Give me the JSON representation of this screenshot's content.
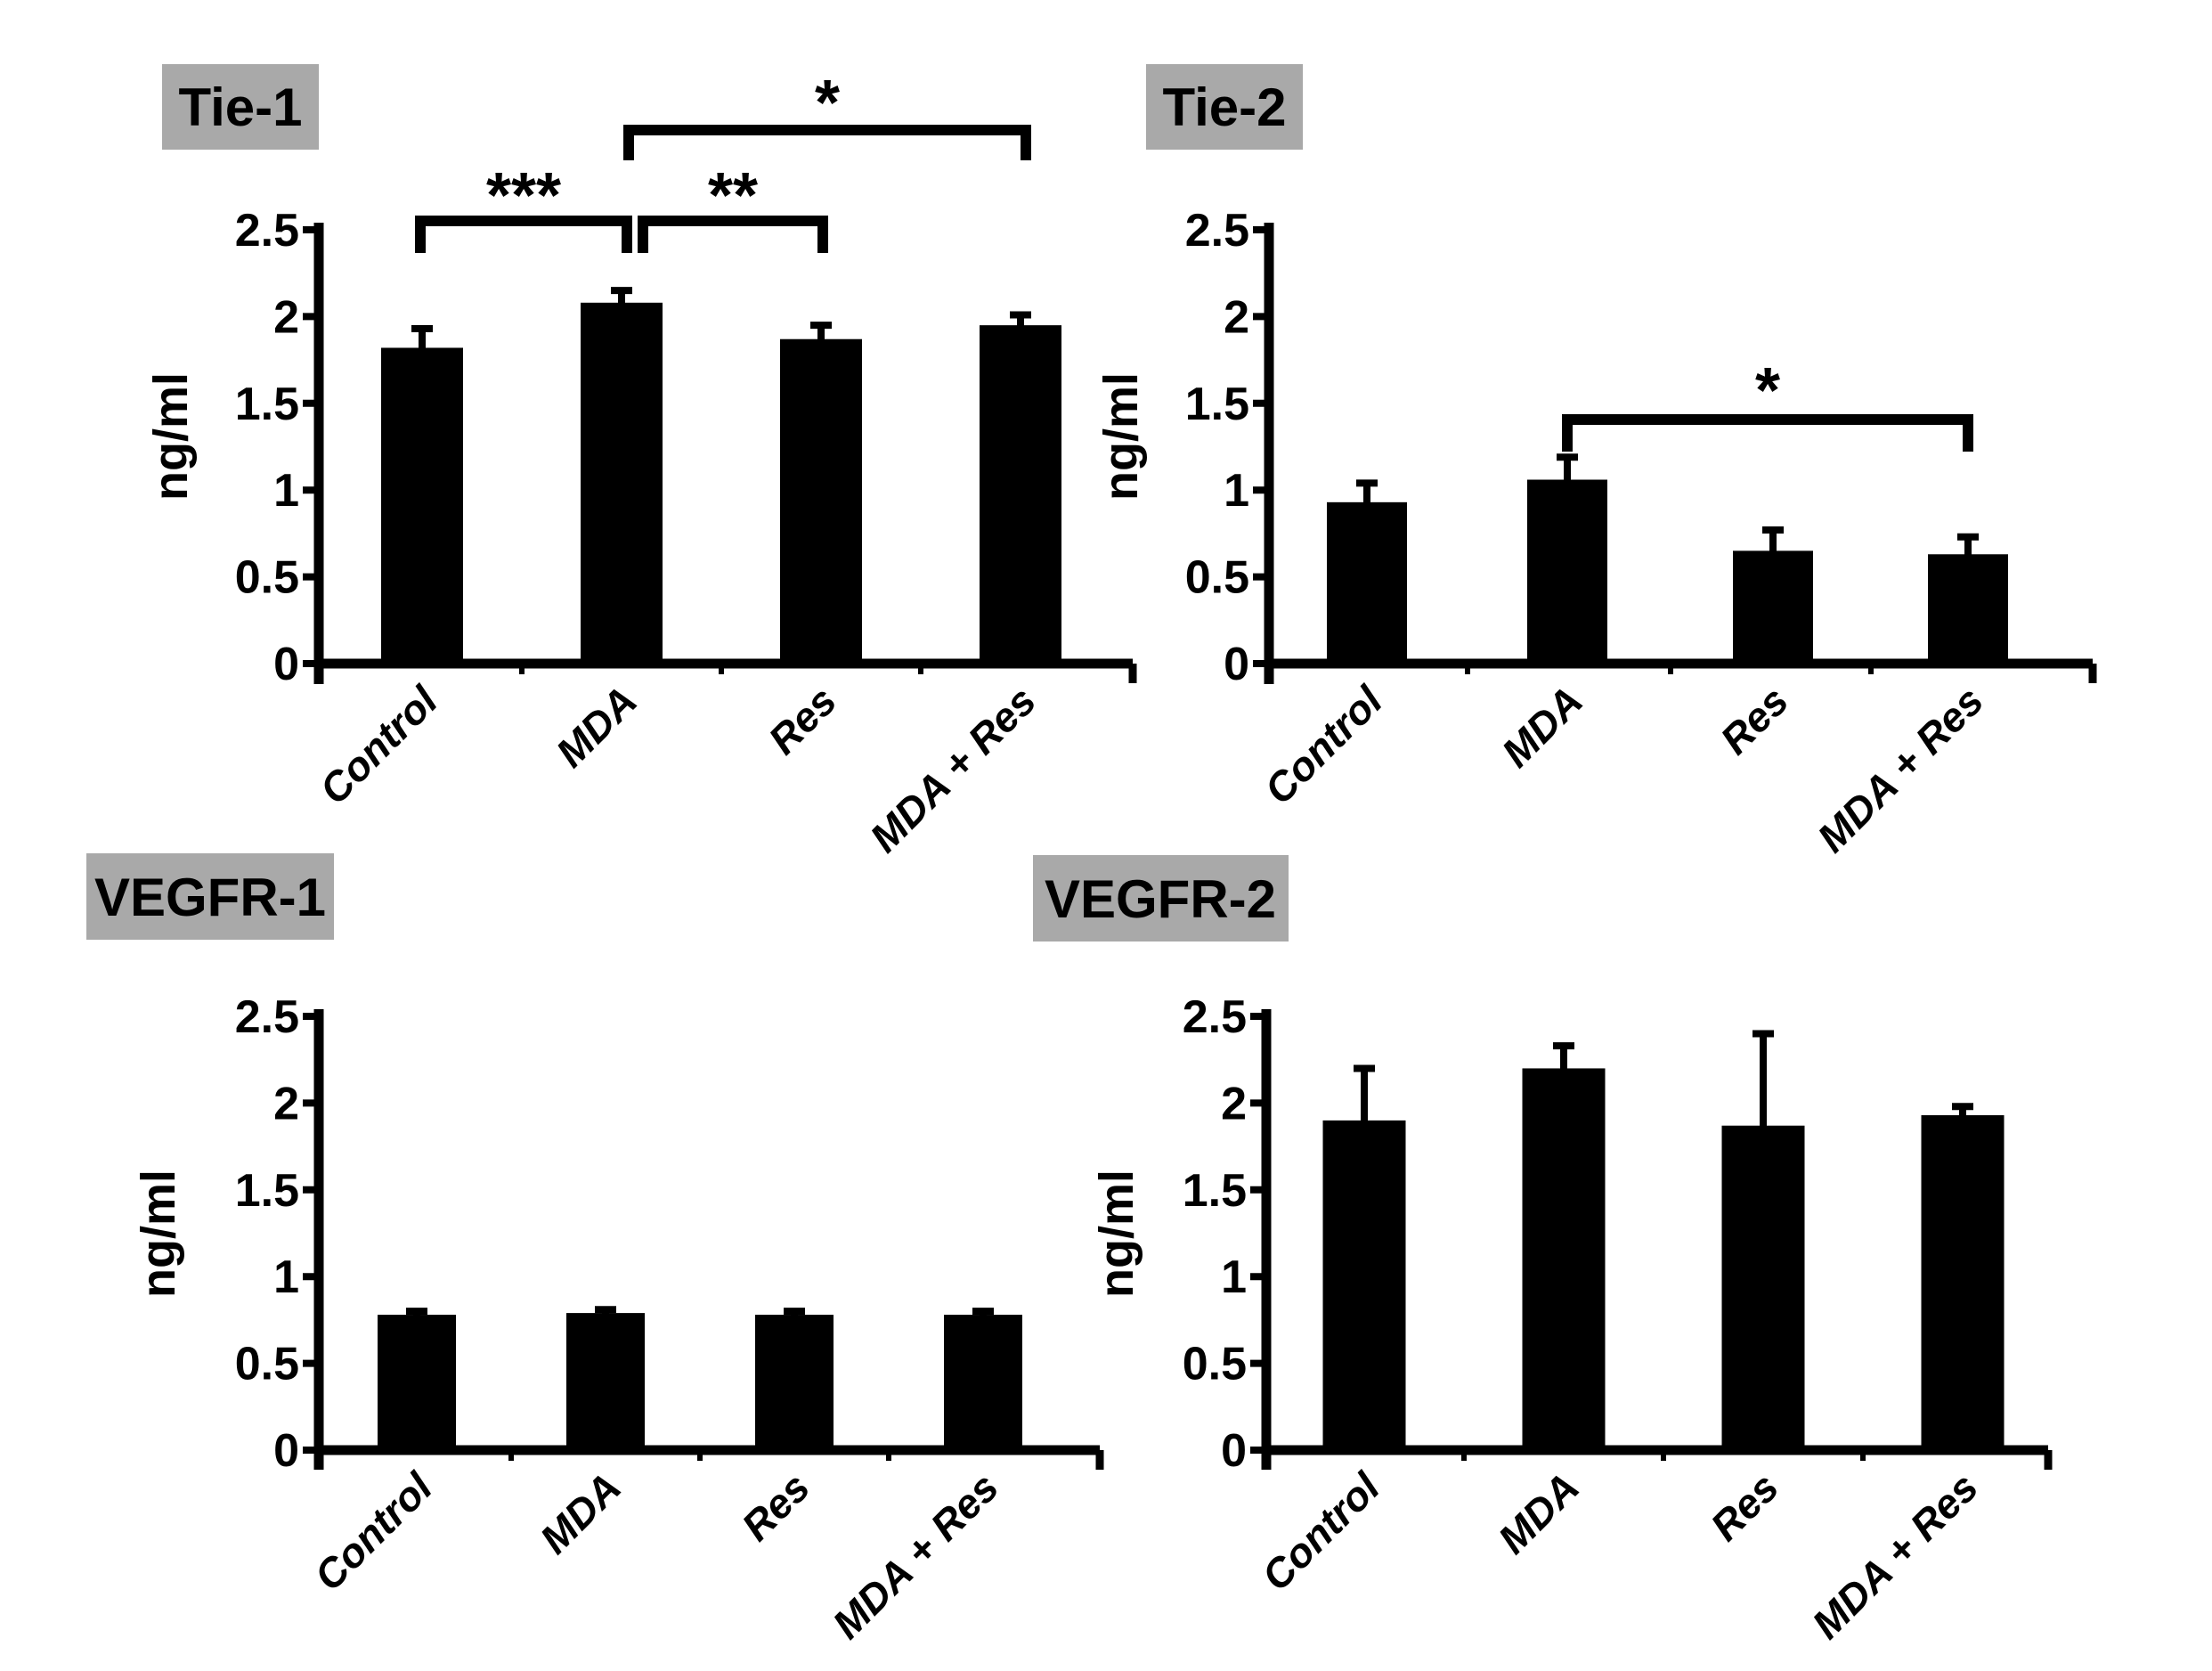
{
  "figure": {
    "background_color": "#ffffff",
    "bar_color": "#000000",
    "axis_color": "#000000",
    "title_box_color": "#a9a9a9",
    "title_text_color": "#000000"
  },
  "shared": {
    "ylabel": "ng/ml",
    "categories": [
      "Control",
      "MDA",
      "Res",
      "MDA + Res"
    ],
    "ytick_labels": [
      "0",
      "0.5",
      "1",
      "1.5",
      "2",
      "2.5"
    ],
    "ylim": [
      0,
      2.5
    ],
    "grid": "off",
    "legend": "none"
  },
  "chart_data": [
    {
      "id": "tie-1",
      "type": "bar",
      "title": "Tie-1",
      "xlabel": "",
      "ylabel": "ng/ml",
      "ylim": [
        0,
        2.5
      ],
      "categories": [
        "Control",
        "MDA",
        "Res",
        "MDA + Res"
      ],
      "values": [
        1.82,
        2.08,
        1.87,
        1.95
      ],
      "errors_plus": [
        0.11,
        0.07,
        0.08,
        0.06
      ],
      "significance": [
        {
          "between": [
            "Control",
            "MDA"
          ],
          "label": "***"
        },
        {
          "between": [
            "MDA",
            "Res"
          ],
          "label": "**"
        },
        {
          "between": [
            "MDA",
            "MDA + Res"
          ],
          "label": "*"
        }
      ]
    },
    {
      "id": "tie-2",
      "type": "bar",
      "title": "Tie-2",
      "xlabel": "",
      "ylabel": "ng/ml",
      "ylim": [
        0,
        2.5
      ],
      "categories": [
        "Control",
        "MDA",
        "Res",
        "MDA + Res"
      ],
      "values": [
        0.93,
        1.06,
        0.65,
        0.63
      ],
      "errors_plus": [
        0.11,
        0.13,
        0.12,
        0.1
      ],
      "significance": [
        {
          "between": [
            "MDA",
            "MDA + Res"
          ],
          "label": "*"
        }
      ]
    },
    {
      "id": "vegfr-1",
      "type": "bar",
      "title": "VEGFR-1",
      "xlabel": "",
      "ylabel": "ng/ml",
      "ylim": [
        0,
        2.5
      ],
      "categories": [
        "Control",
        "MDA",
        "Res",
        "MDA + Res"
      ],
      "values": [
        0.78,
        0.79,
        0.78,
        0.78
      ],
      "errors_plus": [
        0.02,
        0.02,
        0.02,
        0.02
      ],
      "significance": []
    },
    {
      "id": "vegfr-2",
      "type": "bar",
      "title": "VEGFR-2",
      "xlabel": "",
      "ylabel": "ng/ml",
      "ylim": [
        0,
        2.5
      ],
      "categories": [
        "Control",
        "MDA",
        "Res",
        "MDA + Res"
      ],
      "values": [
        1.9,
        2.2,
        1.87,
        1.93
      ],
      "errors_plus": [
        0.3,
        0.13,
        0.53,
        0.05
      ],
      "significance": []
    }
  ]
}
